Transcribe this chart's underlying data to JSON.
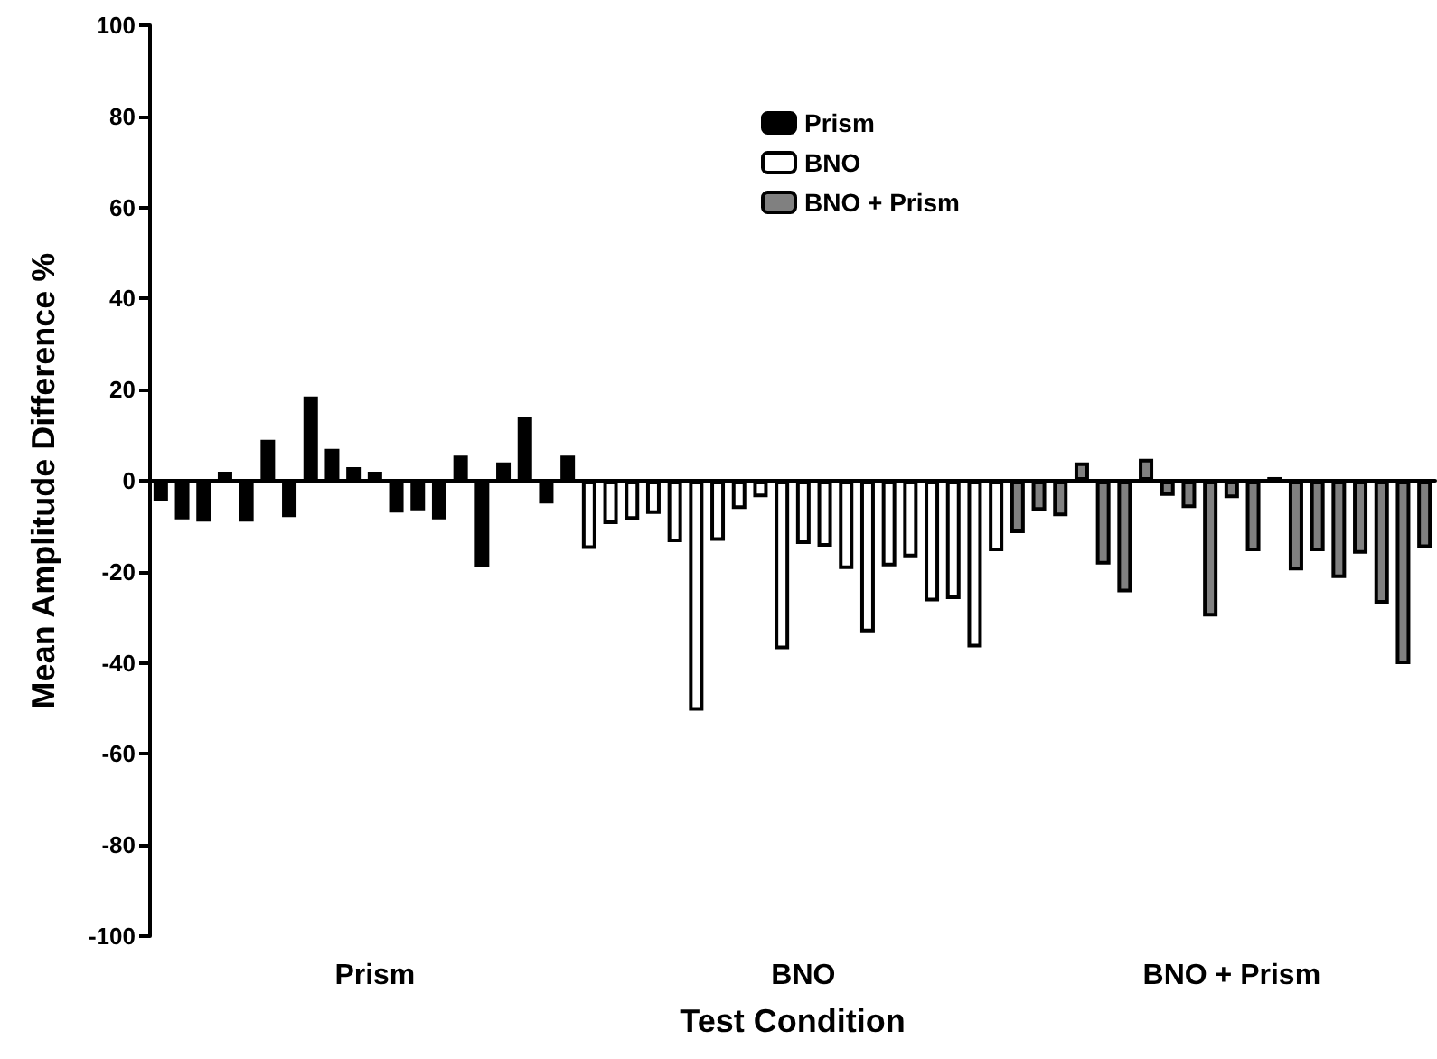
{
  "chart_data": {
    "type": "bar",
    "xlabel": "Test Condition",
    "ylabel": "Mean Amplitude Difference %",
    "categories": [
      null,
      null,
      null,
      null,
      null,
      null,
      null,
      null,
      null,
      null,
      "Prism",
      null,
      null,
      null,
      null,
      null,
      null,
      null,
      null,
      null,
      null,
      null,
      null,
      null,
      null,
      null,
      null,
      null,
      null,
      null,
      "BNO",
      null,
      null,
      null,
      null,
      null,
      null,
      null,
      null,
      null,
      null,
      null,
      null,
      null,
      null,
      null,
      null,
      null,
      null,
      null,
      "BNO + Prism",
      null,
      null,
      null,
      null,
      null,
      null,
      null,
      null,
      null
    ],
    "ylim": [
      -100,
      100
    ],
    "yticks": [
      -100,
      -80,
      -60,
      -40,
      -20,
      0,
      20,
      40,
      60,
      80,
      100
    ],
    "legend": "top",
    "series": [
      {
        "name": "Prism",
        "color": "#000000",
        "values": [
          -4.5,
          -8.5,
          -9,
          2,
          -9,
          9,
          -8,
          18.5,
          7,
          3,
          2,
          -7,
          -6.5,
          -8.5,
          5.5,
          -19,
          4,
          14,
          -5,
          5.5,
          null,
          null,
          null,
          null,
          null,
          null,
          null,
          null,
          null,
          null,
          null,
          null,
          null,
          null,
          null,
          null,
          null,
          null,
          null,
          null,
          null,
          null,
          null,
          null,
          null,
          null,
          null,
          null,
          null,
          null,
          null,
          null,
          null,
          null,
          null,
          null,
          null,
          null,
          null,
          null
        ]
      },
      {
        "name": "BNO",
        "color": "#ffffff",
        "values": [
          null,
          null,
          null,
          null,
          null,
          null,
          null,
          null,
          null,
          null,
          null,
          null,
          null,
          null,
          null,
          null,
          null,
          null,
          null,
          null,
          -15,
          -9.5,
          -8.6,
          -7.3,
          -13.5,
          -50.5,
          -13.2,
          -6.2,
          -3.6,
          -37,
          -13.9,
          -14.5,
          -19.4,
          -33.3,
          -18.8,
          -16.8,
          -26.5,
          -26,
          -36.6,
          -15.5,
          null,
          null,
          null,
          null,
          null,
          null,
          null,
          null,
          null,
          null,
          null,
          null,
          null,
          null,
          null,
          null,
          null,
          null,
          null,
          null
        ]
      },
      {
        "name": "BNO + Prism",
        "color": "#808080",
        "values": [
          null,
          null,
          null,
          null,
          null,
          null,
          null,
          null,
          null,
          null,
          null,
          null,
          null,
          null,
          null,
          null,
          null,
          null,
          null,
          null,
          null,
          null,
          null,
          null,
          null,
          null,
          null,
          null,
          null,
          null,
          null,
          null,
          null,
          null,
          null,
          null,
          null,
          null,
          null,
          null,
          -11.5,
          -6.6,
          -7.8,
          4,
          -18.4,
          -24.5,
          4.8,
          -3.3,
          -6,
          -29.8,
          -3.8,
          -15.5,
          0.8,
          -19.7,
          -15.5,
          -21.4,
          -16,
          -27,
          -40.3,
          -14.8
        ]
      }
    ]
  }
}
